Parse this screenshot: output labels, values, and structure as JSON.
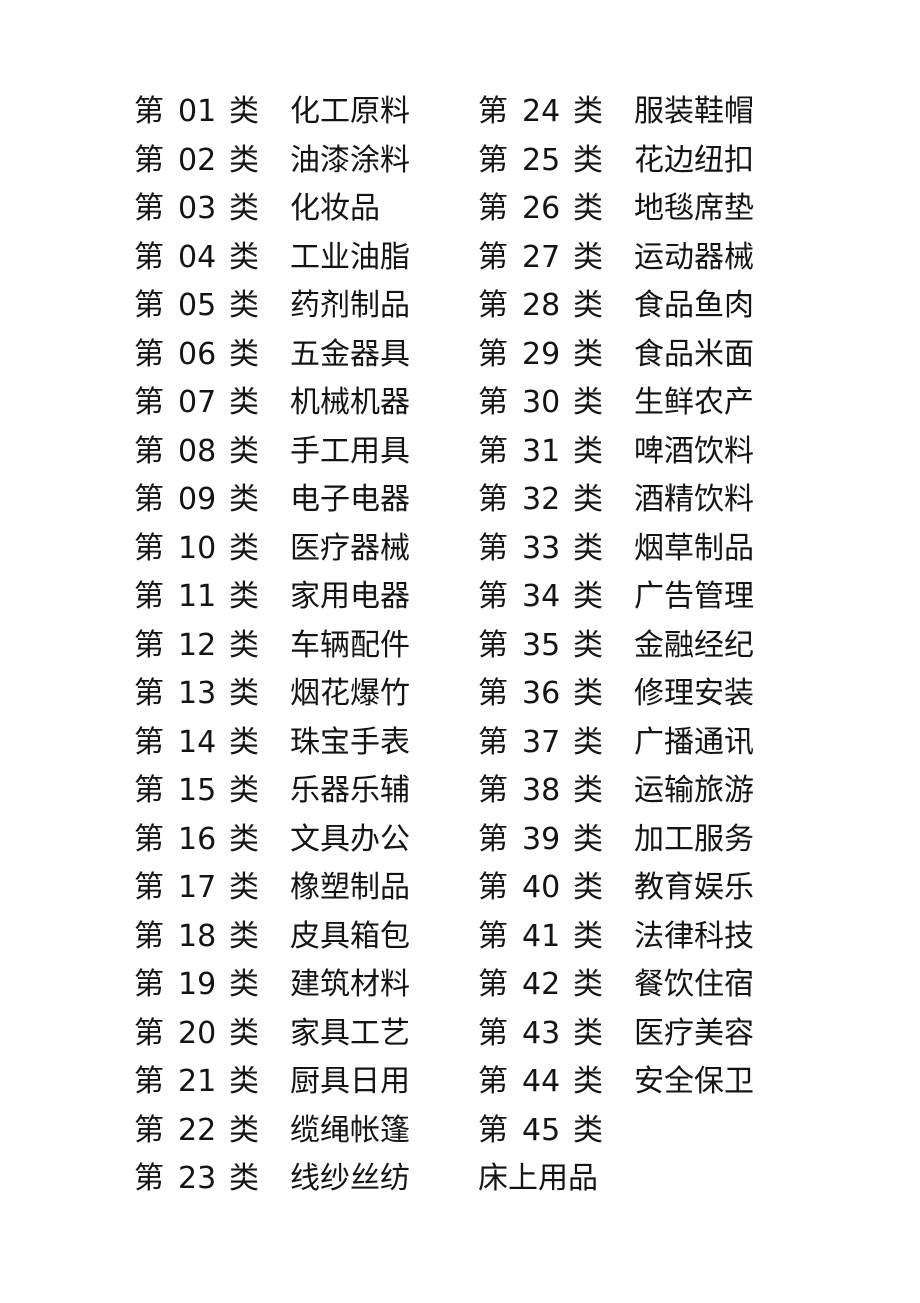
{
  "page": {
    "background": "#ffffff",
    "text_color": "#141414"
  },
  "prefix": "第",
  "suffix": "类",
  "left_entries": [
    {
      "num": "01",
      "label": "化工原料"
    },
    {
      "num": "02",
      "label": "油漆涂料"
    },
    {
      "num": "03",
      "label": "化妆品"
    },
    {
      "num": "04",
      "label": "工业油脂"
    },
    {
      "num": "05",
      "label": "药剂制品"
    },
    {
      "num": "06",
      "label": "五金器具"
    },
    {
      "num": "07",
      "label": "机械机器"
    },
    {
      "num": "08",
      "label": "手工用具"
    },
    {
      "num": "09",
      "label": "电子电器"
    },
    {
      "num": "10",
      "label": "医疗器械"
    },
    {
      "num": "11",
      "label": "家用电器"
    },
    {
      "num": "12",
      "label": "车辆配件"
    },
    {
      "num": "13",
      "label": "烟花爆竹"
    },
    {
      "num": "14",
      "label": "珠宝手表"
    },
    {
      "num": "15",
      "label": "乐器乐辅"
    },
    {
      "num": "16",
      "label": "文具办公"
    },
    {
      "num": "17",
      "label": "橡塑制品"
    },
    {
      "num": "18",
      "label": "皮具箱包"
    },
    {
      "num": "19",
      "label": "建筑材料"
    },
    {
      "num": "20",
      "label": "家具工艺"
    },
    {
      "num": "21",
      "label": "厨具日用"
    },
    {
      "num": "22",
      "label": "缆绳帐篷"
    },
    {
      "num": "23",
      "label": "线纱丝纺"
    }
  ],
  "right_entries": [
    {
      "num": "24",
      "label": "服装鞋帽"
    },
    {
      "num": "25",
      "label": "花边纽扣"
    },
    {
      "num": "26",
      "label": "地毯席垫"
    },
    {
      "num": "27",
      "label": "运动器械"
    },
    {
      "num": "28",
      "label": "食品鱼肉"
    },
    {
      "num": "29",
      "label": "食品米面"
    },
    {
      "num": "30",
      "label": "生鲜农产"
    },
    {
      "num": "31",
      "label": "啤酒饮料"
    },
    {
      "num": "32",
      "label": "酒精饮料"
    },
    {
      "num": "33",
      "label": "烟草制品"
    },
    {
      "num": "34",
      "label": "广告管理"
    },
    {
      "num": "35",
      "label": "金融经纪"
    },
    {
      "num": "36",
      "label": "修理安装"
    },
    {
      "num": "37",
      "label": "广播通讯"
    },
    {
      "num": "38",
      "label": "运输旅游"
    },
    {
      "num": "39",
      "label": "加工服务"
    },
    {
      "num": "40",
      "label": "教育娱乐"
    },
    {
      "num": "41",
      "label": "法律科技"
    },
    {
      "num": "42",
      "label": "餐饮住宿"
    },
    {
      "num": "43",
      "label": "医疗美容"
    },
    {
      "num": "44",
      "label": "安全保卫"
    },
    {
      "num": "45",
      "label": ""
    },
    {
      "text": "床上用品"
    }
  ]
}
